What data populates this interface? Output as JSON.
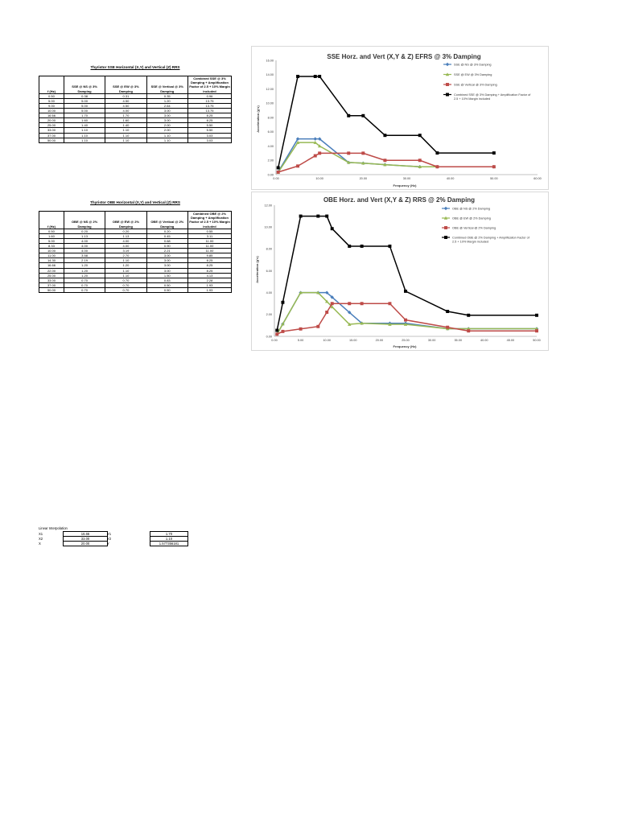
{
  "sse_table": {
    "title": "Thyristor SSE Horizontal (X,Y) and Vertical (Z) RRS",
    "headers": [
      "f (Hz)",
      "SSE @ NS @ 3% Damping",
      "SSE @ EW @ 3% Damping",
      "SSE @ Vertical @ 3% Damping",
      "Combined SSE @ 3% Damping + Amplification Factor of 2.5 + 10% Margin included"
    ],
    "rows": [
      [
        "0.50",
        "0.38",
        "0.31",
        "0.35",
        "0.96"
      ],
      [
        "5.00",
        "5.00",
        "4.50",
        "1.20",
        "13.75"
      ],
      [
        "9.00",
        "5.00",
        "4.50",
        "2.64",
        "13.75"
      ],
      [
        "10.00",
        "5.00",
        "4.00",
        "3.00",
        "13.75"
      ],
      [
        "16.66",
        "1.70",
        "1.70",
        "3.00",
        "8.25"
      ],
      [
        "20.00",
        "1.60",
        "1.60",
        "3.00",
        "8.25"
      ],
      [
        "25.00",
        "1.40",
        "1.40",
        "2.00",
        "5.50"
      ],
      [
        "33.00",
        "1.10",
        "1.10",
        "2.00",
        "5.50"
      ],
      [
        "37.00",
        "1.10",
        "1.10",
        "1.10",
        "3.03"
      ],
      [
        "50.00",
        "1.10",
        "1.10",
        "1.10",
        "3.03"
      ]
    ]
  },
  "obe_table": {
    "title": "Thyristor OBE Horizontal (X,Y) and Vertical (Z) RRS",
    "headers": [
      "f (Hz)",
      "OBE @ NS @ 2% Damping",
      "OBE @ EW @ 2% Damping",
      "OBE @ Vertical @ 2% Damping",
      "Combined OBE @ 2% Damping + Amplification Factor of 2.5 + 10% Margin included"
    ],
    "rows": [
      [
        "0.50",
        "0.20",
        "0.20",
        "0.20",
        "0.55"
      ],
      [
        "1.60",
        "1.13",
        "1.13",
        "0.45",
        "3.11"
      ],
      [
        "5.00",
        "4.00",
        "4.00",
        "0.68",
        "11.00"
      ],
      [
        "8.33",
        "4.00",
        "4.00",
        "0.90",
        "11.00"
      ],
      [
        "10.00",
        "4.00",
        "3.19",
        "2.21",
        "11.00"
      ],
      [
        "11.00",
        "3.58",
        "2.70",
        "3.00",
        "9.85"
      ],
      [
        "14.30",
        "2.19",
        "1.10",
        "3.00",
        "8.25"
      ],
      [
        "16.66",
        "1.20",
        "1.20",
        "3.00",
        "8.25"
      ],
      [
        "22.00",
        "1.20",
        "1.10",
        "3.00",
        "8.25"
      ],
      [
        "25.00",
        "1.20",
        "1.10",
        "1.50",
        "4.13"
      ],
      [
        "33.00",
        "0.70",
        "0.70",
        "0.83",
        "2.28"
      ],
      [
        "37.00",
        "0.70",
        "0.70",
        "0.50",
        "1.93"
      ],
      [
        "50.00",
        "0.70",
        "0.70",
        "0.50",
        "1.93"
      ]
    ]
  },
  "interp": {
    "title": "Linear Interpolation",
    "rows": [
      {
        "label": "X1",
        "value": "16.66",
        "ylabel": "Y1",
        "yvalue": "1.70"
      },
      {
        "label": "X2",
        "value": "33.00",
        "ylabel": "Y2",
        "yvalue": "1.10"
      },
      {
        "label": "X",
        "value": "20.00",
        "ylabel": "Y",
        "yvalue": "1.577356181"
      }
    ]
  },
  "chart_data": [
    {
      "type": "line",
      "title": "SSE Horz. and Vert (X,Y & Z) EFRS @ 3% Damping",
      "xlabel": "Frequency (Hz)",
      "ylabel": "Acceleration (g's)",
      "xlim": [
        0,
        60
      ],
      "ylim": [
        0,
        16
      ],
      "xticks": [
        "0.00",
        "10.00",
        "20.00",
        "30.00",
        "40.00",
        "50.00",
        "60.00"
      ],
      "yticks": [
        "0.00",
        "2.00",
        "4.00",
        "6.00",
        "8.00",
        "10.00",
        "12.00",
        "14.00",
        "16.00"
      ],
      "legend_position": "top-right",
      "x": [
        0.5,
        5,
        9,
        10,
        16.66,
        20,
        25,
        33,
        37,
        50
      ],
      "series": [
        {
          "name": "SSE @ NS @ 3% Damping",
          "color": "#4a7ebb",
          "marker": "diamond",
          "values": [
            0.38,
            5.0,
            5.0,
            5.0,
            1.7,
            1.6,
            1.4,
            1.1,
            1.1,
            1.1
          ]
        },
        {
          "name": "SSE @ EW @ 3% Damping",
          "color": "#98b954",
          "marker": "triangle",
          "values": [
            0.31,
            4.5,
            4.5,
            4.0,
            1.7,
            1.6,
            1.4,
            1.1,
            1.1,
            1.1
          ]
        },
        {
          "name": "SSE @ Vertical @ 3% Damping",
          "color": "#be4b48",
          "marker": "square",
          "values": [
            0.35,
            1.2,
            2.64,
            3.0,
            3.0,
            3.0,
            2.0,
            2.0,
            1.1,
            1.1
          ]
        },
        {
          "name": "Combined SSE @ 3% Damping + Amplification Factor of 2.5 + 10% Margin included",
          "color": "#000000",
          "marker": "square",
          "values": [
            0.96,
            13.75,
            13.75,
            13.75,
            8.25,
            8.25,
            5.5,
            5.5,
            3.03,
            3.03
          ]
        }
      ]
    },
    {
      "type": "line",
      "title": "OBE Horz. and Vert (X,Y & Z) RRS @ 2% Damping",
      "xlabel": "Frequency (Hz)",
      "ylabel": "Acceleration (g's)",
      "xlim": [
        0,
        50
      ],
      "ylim": [
        0,
        12
      ],
      "xticks": [
        "0.00",
        "5.00",
        "10.00",
        "15.00",
        "20.00",
        "25.00",
        "30.00",
        "35.00",
        "40.00",
        "45.00",
        "50.00"
      ],
      "yticks": [
        "0.00",
        "2.00",
        "4.00",
        "6.00",
        "8.00",
        "10.00",
        "12.00"
      ],
      "legend_position": "top-right",
      "x": [
        0.5,
        1.6,
        5,
        8.33,
        10,
        11,
        14.3,
        16.66,
        22,
        25,
        33,
        37,
        50
      ],
      "series": [
        {
          "name": "OBE @ NS @ 2% Damping",
          "color": "#4a7ebb",
          "marker": "diamond",
          "values": [
            0.2,
            1.13,
            4.0,
            4.0,
            4.0,
            3.58,
            2.19,
            1.2,
            1.2,
            1.2,
            0.7,
            0.7,
            0.7
          ]
        },
        {
          "name": "OBE @ EW @ 2% Damping",
          "color": "#98b954",
          "marker": "triangle",
          "values": [
            0.2,
            1.13,
            4.0,
            4.0,
            3.19,
            2.7,
            1.1,
            1.2,
            1.1,
            1.1,
            0.7,
            0.7,
            0.7
          ]
        },
        {
          "name": "OBE @ Vertical @ 2% Damping",
          "color": "#be4b48",
          "marker": "square",
          "values": [
            0.2,
            0.45,
            0.68,
            0.9,
            2.21,
            3.0,
            3.0,
            3.0,
            3.0,
            1.5,
            0.83,
            0.5,
            0.5
          ]
        },
        {
          "name": "Combined OBE @ 2% Damping + Amplification Factor of 2.5 + 10% Margin included",
          "color": "#000000",
          "marker": "square",
          "values": [
            0.55,
            3.11,
            11.0,
            11.0,
            11.0,
            9.85,
            8.25,
            8.25,
            8.25,
            4.13,
            2.28,
            1.93,
            1.93
          ]
        }
      ]
    }
  ]
}
